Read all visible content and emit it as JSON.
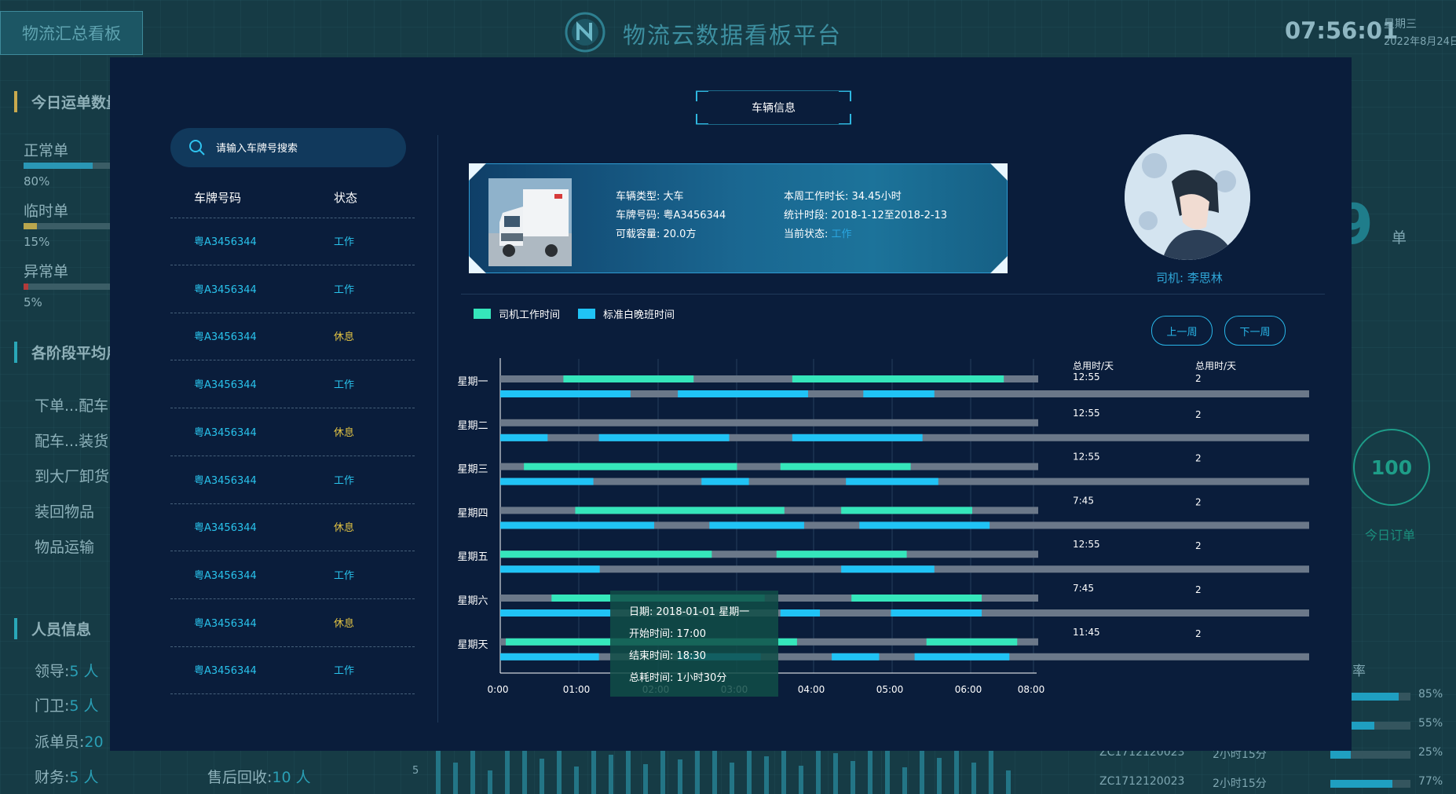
{
  "header": {
    "summary_button": "物流汇总看板",
    "platform_title": "物流云数据看板平台",
    "clock": "07:56:01",
    "weekday": "星期三",
    "date": "2022年8月24日"
  },
  "background": {
    "today_orders_title": "今日运单数量",
    "order_types": [
      {
        "label": "正常单",
        "percent": "80%",
        "fill": 0.8,
        "color": "#2a97b5"
      },
      {
        "label": "临时单",
        "percent": "15%",
        "fill": 0.15,
        "color": "#b9a64d"
      },
      {
        "label": "异常单",
        "percent": "5%",
        "fill": 0.05,
        "color": "#b23b3b"
      }
    ],
    "stages_title": "各阶段平均用",
    "stages": [
      "下单...配车",
      "配车...装货",
      "到大厂卸货",
      "装回物品",
      "物品运输"
    ],
    "personnel_title": "人员信息",
    "personnel": [
      {
        "label": "领导:",
        "value": "5 人"
      },
      {
        "label": "门卫:",
        "value": "5 人"
      },
      {
        "label": "派单员:",
        "value": "20"
      },
      {
        "label": "财务:",
        "value": "5 人"
      },
      {
        "label": "售后回收:",
        "value": "10 人"
      }
    ],
    "big_digit": "9",
    "unit": "单",
    "ring_value": "100",
    "ring_label": "今日订单",
    "rate_header": "率",
    "rates": [
      {
        "code": "",
        "duration": "",
        "percent": "85%",
        "fill": 0.85
      },
      {
        "code": "",
        "duration": "",
        "percent": "55%",
        "fill": 0.55
      },
      {
        "code": "ZC1712120023",
        "duration": "2小时15分",
        "percent": "25%",
        "fill": 0.25
      },
      {
        "code": "ZC1712120023",
        "duration": "2小时15分",
        "percent": "77%",
        "fill": 0.77
      }
    ],
    "axis_tick": "5"
  },
  "modal": {
    "title": "车辆信息",
    "search": {
      "placeholder": "请输入车牌号搜索",
      "value": ""
    },
    "list_headers": {
      "plate": "车牌号码",
      "status": "状态"
    },
    "vehicles": [
      {
        "plate": "粤A3456344",
        "status": "工作",
        "status_color": "#29c3ec"
      },
      {
        "plate": "粤A3456344",
        "status": "工作",
        "status_color": "#29c3ec"
      },
      {
        "plate": "粤A3456344",
        "status": "休息",
        "status_color": "#e3c443"
      },
      {
        "plate": "粤A3456344",
        "status": "工作",
        "status_color": "#29c3ec"
      },
      {
        "plate": "粤A3456344",
        "status": "休息",
        "status_color": "#e3c443"
      },
      {
        "plate": "粤A3456344",
        "status": "工作",
        "status_color": "#29c3ec"
      },
      {
        "plate": "粤A3456344",
        "status": "休息",
        "status_color": "#e3c443"
      },
      {
        "plate": "粤A3456344",
        "status": "工作",
        "status_color": "#29c3ec"
      },
      {
        "plate": "粤A3456344",
        "status": "休息",
        "status_color": "#e3c443"
      },
      {
        "plate": "粤A3456344",
        "status": "工作",
        "status_color": "#29c3ec"
      }
    ],
    "vehicle_info": {
      "type": "车辆类型: 大车",
      "plate": "车牌号码: 粤A3456344",
      "capacity": "可载容量: 20.0方",
      "weekly_hours": "本周工作时长: 34.45小时",
      "period": "统计时段: 2018-1-12至2018-2-13",
      "status_label": "当前状态:",
      "status_value": "工作"
    },
    "driver": "司机: 李思林",
    "legend": [
      {
        "label": "司机工作时间",
        "color": "#35e6bb"
      },
      {
        "label": "标准白晚班时间",
        "color": "#20c3f5"
      }
    ],
    "prev_week": "上一周",
    "next_week": "下一周",
    "col_headers": [
      "总用时/天",
      "总用时/天"
    ],
    "tooltip": {
      "date": "日期: 2018-01-01 星期一",
      "start": "开始时间: 17:00",
      "end": "结束时间: 18:30",
      "total": "总耗时间: 1小时30分"
    }
  },
  "chart_data": {
    "type": "timeline",
    "x_ticks": [
      "0:00",
      "01:00",
      "02:00",
      "03:00",
      "04:00",
      "05:00",
      "06:00",
      "08:00"
    ],
    "xlim_hours": [
      0,
      7
    ],
    "days": [
      {
        "day": "星期一",
        "total": "12:55",
        "count": "2",
        "driver": [
          [
            0.8,
            2.45
          ],
          [
            3.7,
            6.38
          ]
        ],
        "standard": [
          [
            0,
            1.65
          ],
          [
            2.25,
            3.9
          ],
          [
            4.6,
            5.5
          ]
        ]
      },
      {
        "day": "星期二",
        "total": "12:55",
        "count": "2",
        "driver": [],
        "standard": [
          [
            0,
            0.6
          ],
          [
            1.25,
            2.9
          ],
          [
            3.7,
            5.35
          ]
        ]
      },
      {
        "day": "星期三",
        "total": "12:55",
        "count": "2",
        "driver": [
          [
            0.3,
            3.0
          ],
          [
            3.55,
            5.2
          ]
        ],
        "standard": [
          [
            0,
            1.18
          ],
          [
            2.55,
            3.15
          ],
          [
            4.38,
            5.55
          ]
        ]
      },
      {
        "day": "星期四",
        "total": "7:45",
        "count": "2",
        "driver": [
          [
            0.95,
            3.6
          ],
          [
            4.32,
            5.98
          ]
        ],
        "standard": [
          [
            0,
            1.95
          ],
          [
            2.65,
            3.85
          ],
          [
            4.55,
            6.2
          ]
        ]
      },
      {
        "day": "星期五",
        "total": "12:55",
        "count": "2",
        "driver": [
          [
            0,
            2.68
          ],
          [
            3.5,
            5.15
          ]
        ],
        "standard": [
          [
            0,
            1.26
          ],
          [
            4.32,
            5.5
          ]
        ]
      },
      {
        "day": "星期六",
        "total": "7:45",
        "count": "2",
        "driver": [
          [
            0.65,
            3.35
          ],
          [
            4.45,
            6.1
          ]
        ],
        "standard": [
          [
            0,
            1.4
          ],
          [
            3.55,
            4.05
          ],
          [
            4.95,
            6.1
          ]
        ]
      },
      {
        "day": "星期天",
        "total": "11:45",
        "count": "2",
        "driver": [
          [
            0.07,
            3.76
          ],
          [
            5.4,
            6.55
          ]
        ],
        "standard": [
          [
            0,
            1.25
          ],
          [
            2.25,
            3.3
          ],
          [
            4.2,
            4.8
          ],
          [
            5.25,
            6.45
          ]
        ]
      }
    ]
  }
}
